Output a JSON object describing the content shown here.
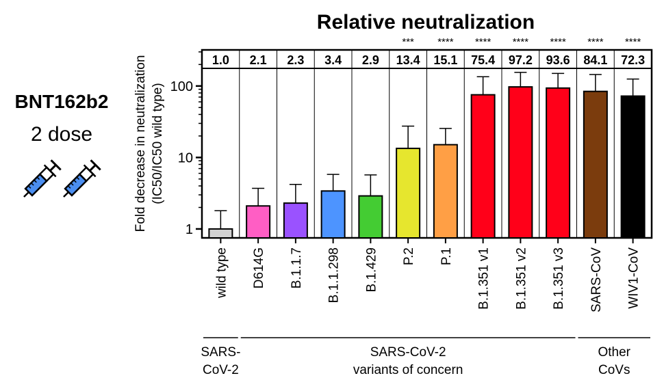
{
  "vaccine": {
    "name": "BNT162b2",
    "dose": "2 dose"
  },
  "chart_data": {
    "type": "bar",
    "title": "Relative neutralization",
    "ylabel_line1": "Fold decrease in neutralization",
    "ylabel_line2": "(IC50/IC50 wild type)",
    "yscale": "log",
    "ylim": [
      0.75,
      320
    ],
    "yticks": [
      1,
      10,
      100
    ],
    "ytick_labels": [
      "1",
      "10",
      "100"
    ],
    "categories": [
      "wild type",
      "D614G",
      "B.1.1.7",
      "B.1.1.298",
      "B.1.429",
      "P.2",
      "P.1",
      "B.1.351 v1",
      "B.1.351 v2",
      "B.1.351 v3",
      "SARS-CoV",
      "WIV1-CoV"
    ],
    "values": [
      1.0,
      2.1,
      2.3,
      3.4,
      2.9,
      13.4,
      15.1,
      75.4,
      97.2,
      93.6,
      84.1,
      72.3
    ],
    "value_labels": [
      "1.0",
      "2.1",
      "2.3",
      "3.4",
      "2.9",
      "13.4",
      "15.1",
      "75.4",
      "97.2",
      "93.6",
      "84.1",
      "72.3"
    ],
    "error_upper": [
      1.8,
      3.7,
      4.2,
      5.8,
      5.7,
      27.5,
      25.5,
      135,
      155,
      150,
      145,
      125
    ],
    "significance": [
      "",
      "",
      "",
      "",
      "",
      "***",
      "****",
      "****",
      "****",
      "****",
      "****",
      "****"
    ],
    "colors": [
      "#d3d3d3",
      "#ff5ec4",
      "#9a52ff",
      "#4d94ff",
      "#44cc33",
      "#e6e62e",
      "#ff9f45",
      "#ff0019",
      "#ff0019",
      "#ff0019",
      "#7b3c0d",
      "#000000"
    ],
    "groups": [
      {
        "line1": "SARS-",
        "line2": "CoV-2",
        "start": 0,
        "end": 0
      },
      {
        "line1": "SARS-CoV-2",
        "line2": "variants of concern",
        "start": 1,
        "end": 9
      },
      {
        "line1": "Other",
        "line2": "CoVs",
        "start": 10,
        "end": 11
      }
    ]
  }
}
